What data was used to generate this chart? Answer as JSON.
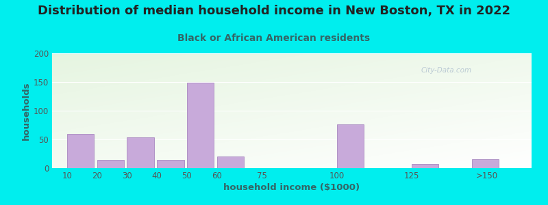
{
  "title": "Distribution of median household income in New Boston, TX in 2022",
  "subtitle": "Black or African American residents",
  "xlabel": "household income ($1000)",
  "ylabel": "households",
  "background_outer": "#00EEEE",
  "bar_color": "#c8aada",
  "bar_edge_color": "#a888c0",
  "title_fontsize": 13,
  "subtitle_fontsize": 10,
  "label_fontsize": 9.5,
  "tick_fontsize": 8.5,
  "ylim": [
    0,
    200
  ],
  "yticks": [
    0,
    50,
    100,
    150,
    200
  ],
  "categories": [
    "10",
    "20",
    "30",
    "40",
    "50",
    "60",
    "75",
    "100",
    "125",
    ">150"
  ],
  "values": [
    60,
    14,
    54,
    14,
    149,
    20,
    0,
    76,
    7,
    15
  ],
  "x_lefts": [
    10,
    20,
    30,
    40,
    50,
    60,
    75,
    100,
    125,
    145
  ],
  "x_widths": [
    9,
    9,
    9,
    9,
    9,
    9,
    9,
    9,
    9,
    9
  ],
  "xtick_positions": [
    10,
    20,
    30,
    40,
    50,
    60,
    75,
    100,
    125,
    150
  ],
  "xtick_labels": [
    "10",
    "20",
    "30",
    "40",
    "50",
    "60",
    "75",
    "100",
    "125",
    ">150"
  ],
  "xlim_left": 5,
  "xlim_right": 165,
  "watermark": "City-Data.com",
  "title_color": "#222222",
  "subtitle_color": "#336666",
  "axis_label_color": "#336666",
  "tick_color": "#555555"
}
